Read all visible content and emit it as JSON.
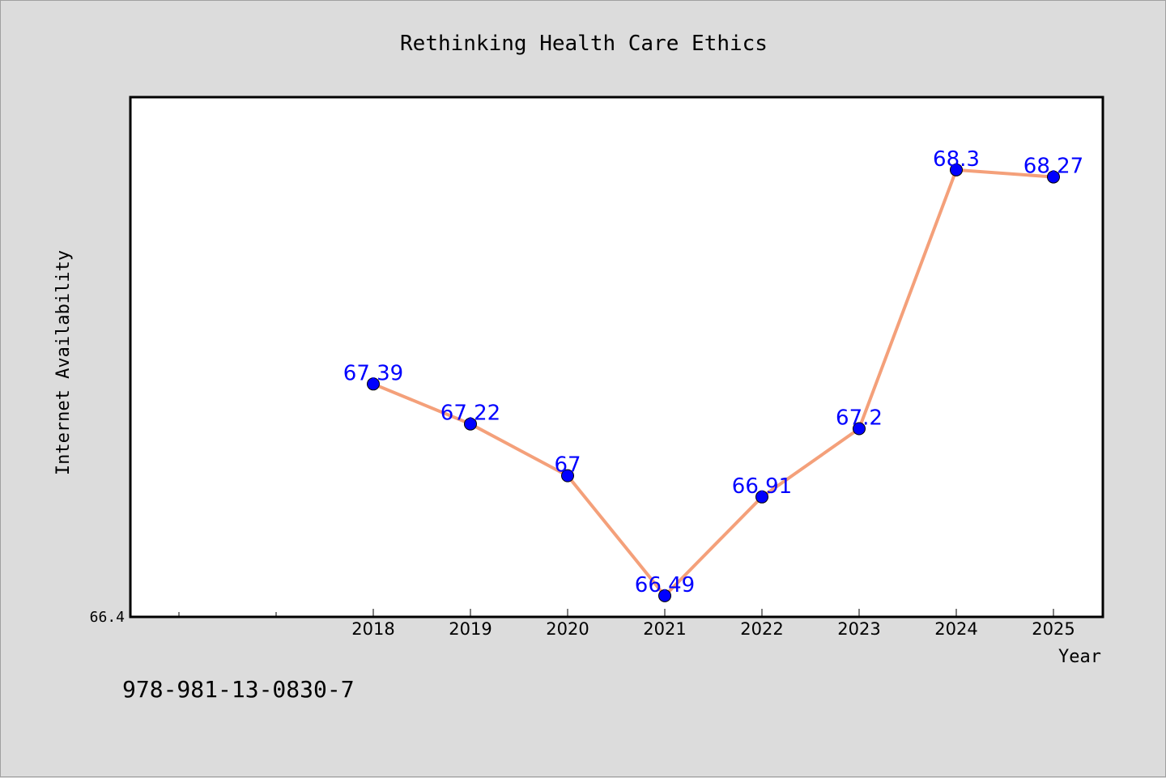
{
  "chart_data": {
    "type": "line",
    "title": "Rethinking Health Care Ethics",
    "xlabel": "Year",
    "ylabel": "Internet Availability",
    "categories": [
      "2018",
      "2019",
      "2020",
      "2021",
      "2022",
      "2023",
      "2024",
      "2025"
    ],
    "series": [
      {
        "values": [
          67.39,
          67.22,
          67.0,
          66.49,
          66.91,
          67.2,
          68.3,
          68.27
        ],
        "value_labels": [
          "67.39",
          "67.22",
          "67",
          "66.49",
          "66.91",
          "67.2",
          "68.3",
          "68.27"
        ],
        "line_color": "#f4a07a",
        "marker_color": "#0000ff"
      }
    ],
    "ylim": [
      66.4,
      68.6
    ],
    "y_tick_labels": [
      "66.4"
    ],
    "label_color": "#0000ff",
    "grid": false,
    "legend": "none"
  },
  "footer": {
    "isbn": "978-981-13-0830-7"
  }
}
